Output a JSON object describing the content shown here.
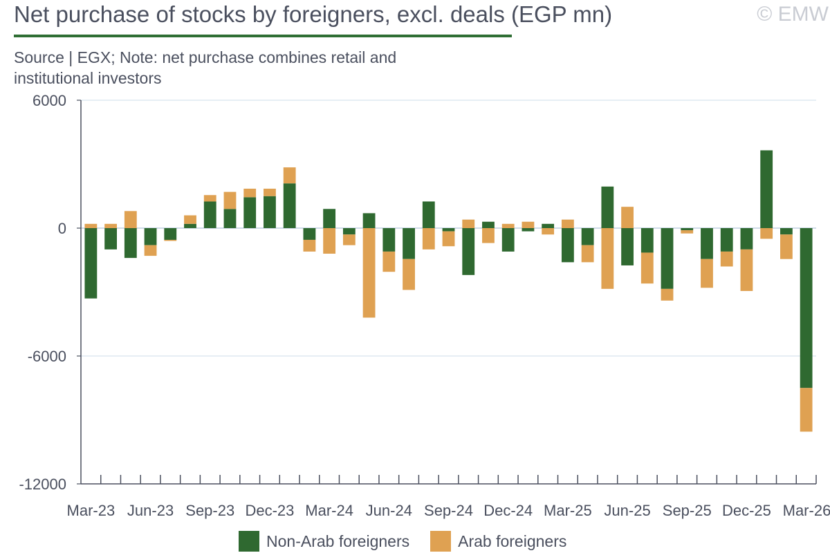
{
  "title": "Net purchase of stocks by foreigners, excl. deals (EGP mn)",
  "copyright": "© EMW",
  "subtitle": "Source | EGX; Note: net purchase combines retail and institutional investors",
  "colors": {
    "non_arab": "#2f6930",
    "arab": "#dfa152",
    "axis": "#4a4f5e",
    "grid": "#d8e3ee"
  },
  "chart_data": {
    "type": "bar",
    "stacked": true,
    "ylim": [
      -12000,
      6000
    ],
    "yticks": [
      6000,
      0,
      -6000,
      -12000
    ],
    "xtick_labels": [
      "Mar-23",
      "Jun-23",
      "Sep-23",
      "Dec-23",
      "Mar-24",
      "Jun-24",
      "Sep-24",
      "Dec-24",
      "Mar-25",
      "Jun-25",
      "Sep-25",
      "Dec-25",
      "Mar-26"
    ],
    "categories": [
      "Mar-23",
      "Apr-23",
      "May-23",
      "Jun-23",
      "Jul-23",
      "Aug-23",
      "Sep-23",
      "Oct-23",
      "Nov-23",
      "Dec-23",
      "Jan-24",
      "Feb-24",
      "Mar-24",
      "Apr-24",
      "May-24",
      "Jun-24",
      "Jul-24",
      "Aug-24",
      "Sep-24",
      "Oct-24",
      "Nov-24",
      "Dec-24",
      "Jan-25",
      "Feb-25",
      "Mar-25",
      "Apr-25",
      "May-25",
      "Jun-25",
      "Jul-25",
      "Aug-25",
      "Sep-25",
      "Oct-25",
      "Nov-25",
      "Dec-25",
      "Jan-26",
      "Feb-26",
      "Mar-26"
    ],
    "series": [
      {
        "name": "Non-Arab foreigners",
        "values": [
          -3300,
          -1000,
          -1400,
          -800,
          -550,
          200,
          1250,
          900,
          1450,
          1500,
          2100,
          -550,
          900,
          -300,
          700,
          -1100,
          -1450,
          1250,
          -150,
          -2200,
          300,
          -1100,
          -150,
          200,
          -1600,
          -800,
          1950,
          -1750,
          -1150,
          -2850,
          -100,
          -1450,
          -1100,
          -1000,
          3650,
          -300,
          -7500
        ]
      },
      {
        "name": "Arab foreigners",
        "values": [
          200,
          200,
          800,
          -500,
          -50,
          400,
          300,
          800,
          400,
          350,
          750,
          -550,
          -1200,
          -500,
          -4200,
          -950,
          -1450,
          -1000,
          -700,
          400,
          -700,
          200,
          300,
          -300,
          400,
          -800,
          -2850,
          1000,
          -1450,
          -550,
          -150,
          -1350,
          -700,
          -1950,
          -500,
          -1150,
          -2050
        ]
      }
    ]
  }
}
